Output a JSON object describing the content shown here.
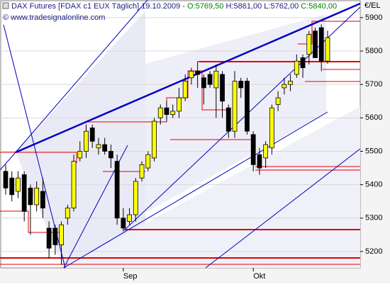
{
  "chart_data": {
    "type": "candlestick",
    "title": "DAX Futures [FDAX c1 EUX  Täglich] 19.10.2009 -",
    "quote": {
      "open": "O:5769,50",
      "high": "H:5861,00",
      "low": "L:5762,00",
      "close": "C:5840,00"
    },
    "watermark": "© www.tradesignalonline.com",
    "y_label": "€/EL",
    "categories": [
      null,
      null,
      null,
      null,
      null,
      null,
      null,
      null,
      null,
      null,
      null,
      null,
      null,
      null,
      null,
      null,
      null,
      null,
      null,
      "Sep",
      null,
      null,
      null,
      null,
      null,
      null,
      null,
      null,
      null,
      null,
      null,
      null,
      null,
      null,
      null,
      null,
      null,
      null,
      null,
      null,
      "Okt",
      null,
      null,
      null,
      null,
      null,
      null,
      null,
      null,
      null,
      null,
      null,
      null
    ],
    "open": [
      5440,
      5420,
      5380,
      5430,
      5390,
      5340,
      5380,
      5270,
      5270,
      5220,
      5300,
      5330,
      5480,
      5500,
      5570,
      5510,
      5520,
      5500,
      5470,
      5300,
      5290,
      5310,
      5420,
      5450,
      5480,
      5600,
      5630,
      5610,
      5620,
      5660,
      5720,
      5740,
      5720,
      5730,
      5690,
      5730,
      5630,
      5560,
      5710,
      5710,
      5550,
      5490,
      5480,
      5510,
      5640,
      5690,
      5700,
      5730,
      5780,
      5790,
      5860,
      5870,
      5770
    ],
    "high": [
      5460,
      5440,
      5440,
      5440,
      5400,
      5410,
      5420,
      5290,
      5280,
      5290,
      5340,
      5490,
      5530,
      5580,
      5580,
      5540,
      5540,
      5520,
      5490,
      5330,
      5330,
      5420,
      5470,
      5500,
      5600,
      5640,
      5650,
      5640,
      5690,
      5730,
      5750,
      5770,
      5730,
      5740,
      5760,
      5740,
      5640,
      5740,
      5720,
      5720,
      5560,
      5510,
      5530,
      5640,
      5680,
      5720,
      5730,
      5790,
      5790,
      5860,
      5870,
      5880,
      5861
    ],
    "low": [
      5370,
      5350,
      5360,
      5290,
      5250,
      5320,
      5300,
      5180,
      5190,
      5160,
      5280,
      5320,
      5470,
      5480,
      5510,
      5490,
      5490,
      5450,
      5280,
      5260,
      5280,
      5290,
      5410,
      5440,
      5470,
      5580,
      5590,
      5600,
      5600,
      5650,
      5700,
      5690,
      5640,
      5690,
      5600,
      5600,
      5540,
      5540,
      5660,
      5550,
      5440,
      5430,
      5450,
      5490,
      5620,
      5670,
      5680,
      5720,
      5720,
      5760,
      5780,
      5740,
      5762
    ],
    "close": [
      5390,
      5370,
      5420,
      5320,
      5340,
      5390,
      5330,
      5210,
      5220,
      5280,
      5330,
      5470,
      5500,
      5560,
      5530,
      5520,
      5500,
      5480,
      5300,
      5270,
      5310,
      5410,
      5460,
      5490,
      5590,
      5630,
      5610,
      5620,
      5660,
      5710,
      5740,
      5730,
      5690,
      5700,
      5740,
      5650,
      5560,
      5710,
      5690,
      5560,
      5460,
      5450,
      5520,
      5630,
      5660,
      5700,
      5710,
      5770,
      5750,
      5850,
      5780,
      5770,
      5840
    ],
    "up_color": "#ffff00",
    "down_color": "#000000",
    "ylim": [
      5151,
      5921
    ],
    "yticks": [
      5200,
      5300,
      5400,
      5500,
      5600,
      5700,
      5800,
      5900
    ],
    "grid": true
  }
}
